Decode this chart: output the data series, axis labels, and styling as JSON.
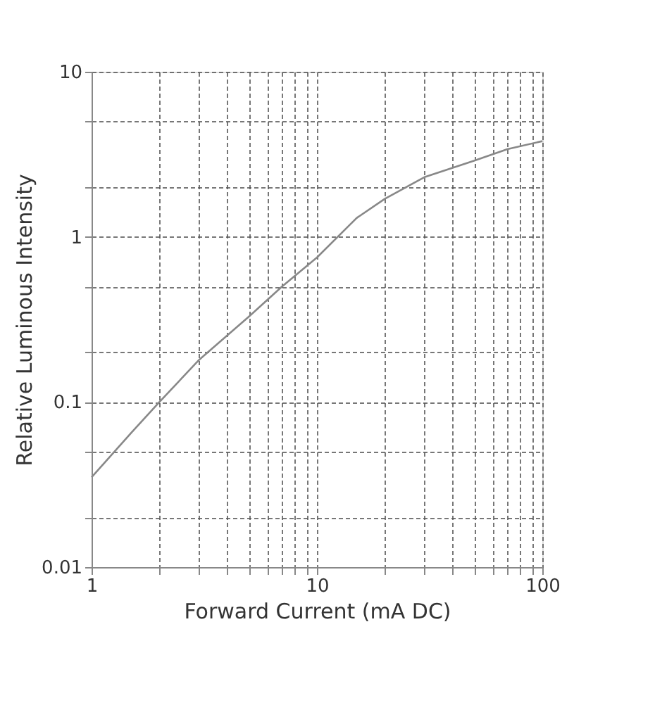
{
  "chart_data": {
    "type": "line",
    "xlabel": "Forward Current (mA DC)",
    "ylabel": "Relative Luminous Intensity",
    "log": "xy",
    "grid": true,
    "line_style": "solid",
    "marker": "none",
    "xlim": [
      1,
      100
    ],
    "ylim": [
      0.01,
      10
    ],
    "xticks": [
      1,
      {
        "value": 2,
        "label": null
      },
      {
        "value": 3,
        "label": null
      },
      {
        "value": 4,
        "label": null
      },
      {
        "value": 5,
        "label": null
      },
      {
        "value": 6,
        "label": null
      },
      {
        "value": 7,
        "label": null
      },
      {
        "value": 8,
        "label": null
      },
      {
        "value": 9,
        "label": null
      },
      10,
      {
        "value": 20,
        "label": null
      },
      {
        "value": 30,
        "label": null
      },
      {
        "value": 40,
        "label": null
      },
      {
        "value": 50,
        "label": null
      },
      {
        "value": 60,
        "label": null
      },
      {
        "value": 70,
        "label": null
      },
      {
        "value": 80,
        "label": null
      },
      {
        "value": 90,
        "label": null
      },
      100
    ],
    "yticks": [
      0.01,
      {
        "value": 0.02,
        "label": null
      },
      {
        "value": 0.05,
        "label": null
      },
      0.1,
      {
        "value": 0.2,
        "label": null
      },
      {
        "value": 0.5,
        "label": null
      },
      1,
      {
        "value": 2,
        "label": null
      },
      {
        "value": 5,
        "label": null
      },
      10
    ],
    "x": [
      1,
      1.5,
      2,
      3,
      5,
      7,
      10,
      15,
      20,
      30,
      50,
      70,
      100
    ],
    "series": [
      {
        "color": "#888888",
        "values": [
          0.035,
          0.065,
          0.1,
          0.18,
          0.33,
          0.5,
          0.75,
          1.3,
          1.7,
          2.3,
          2.9,
          3.4,
          3.8
        ]
      }
    ]
  }
}
